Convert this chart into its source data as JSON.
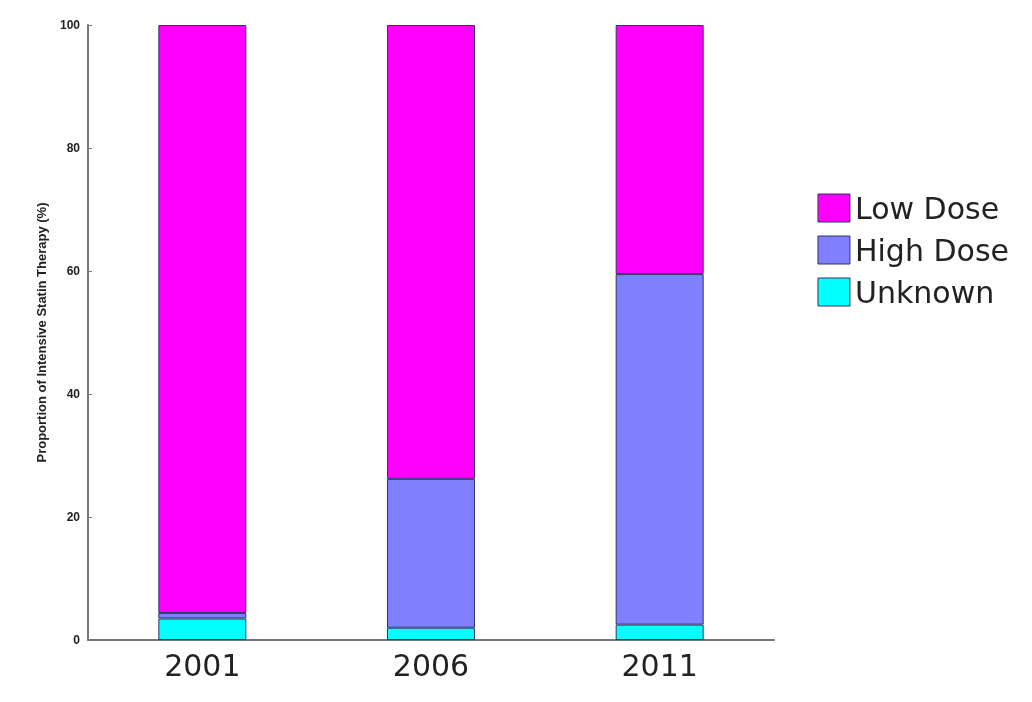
{
  "chart_data": {
    "type": "bar",
    "stacked": true,
    "ylabel": "Proportion of Intensive Statin Therapy (%)",
    "categories": [
      "2001",
      "2006",
      "2011"
    ],
    "series": [
      {
        "name": "Unknown",
        "color": "#00ffff",
        "values": [
          3.5,
          2.0,
          2.5
        ]
      },
      {
        "name": "High Dose",
        "color": "#7f7fff",
        "values": [
          0.9,
          24.2,
          57.0
        ]
      },
      {
        "name": "Low Dose",
        "color": "#ff00ff",
        "values": [
          95.6,
          73.8,
          40.5
        ]
      }
    ],
    "ylim": [
      0,
      100
    ],
    "yticks": [
      0,
      20,
      40,
      60,
      80,
      100
    ],
    "grid": false,
    "legend": "right"
  }
}
